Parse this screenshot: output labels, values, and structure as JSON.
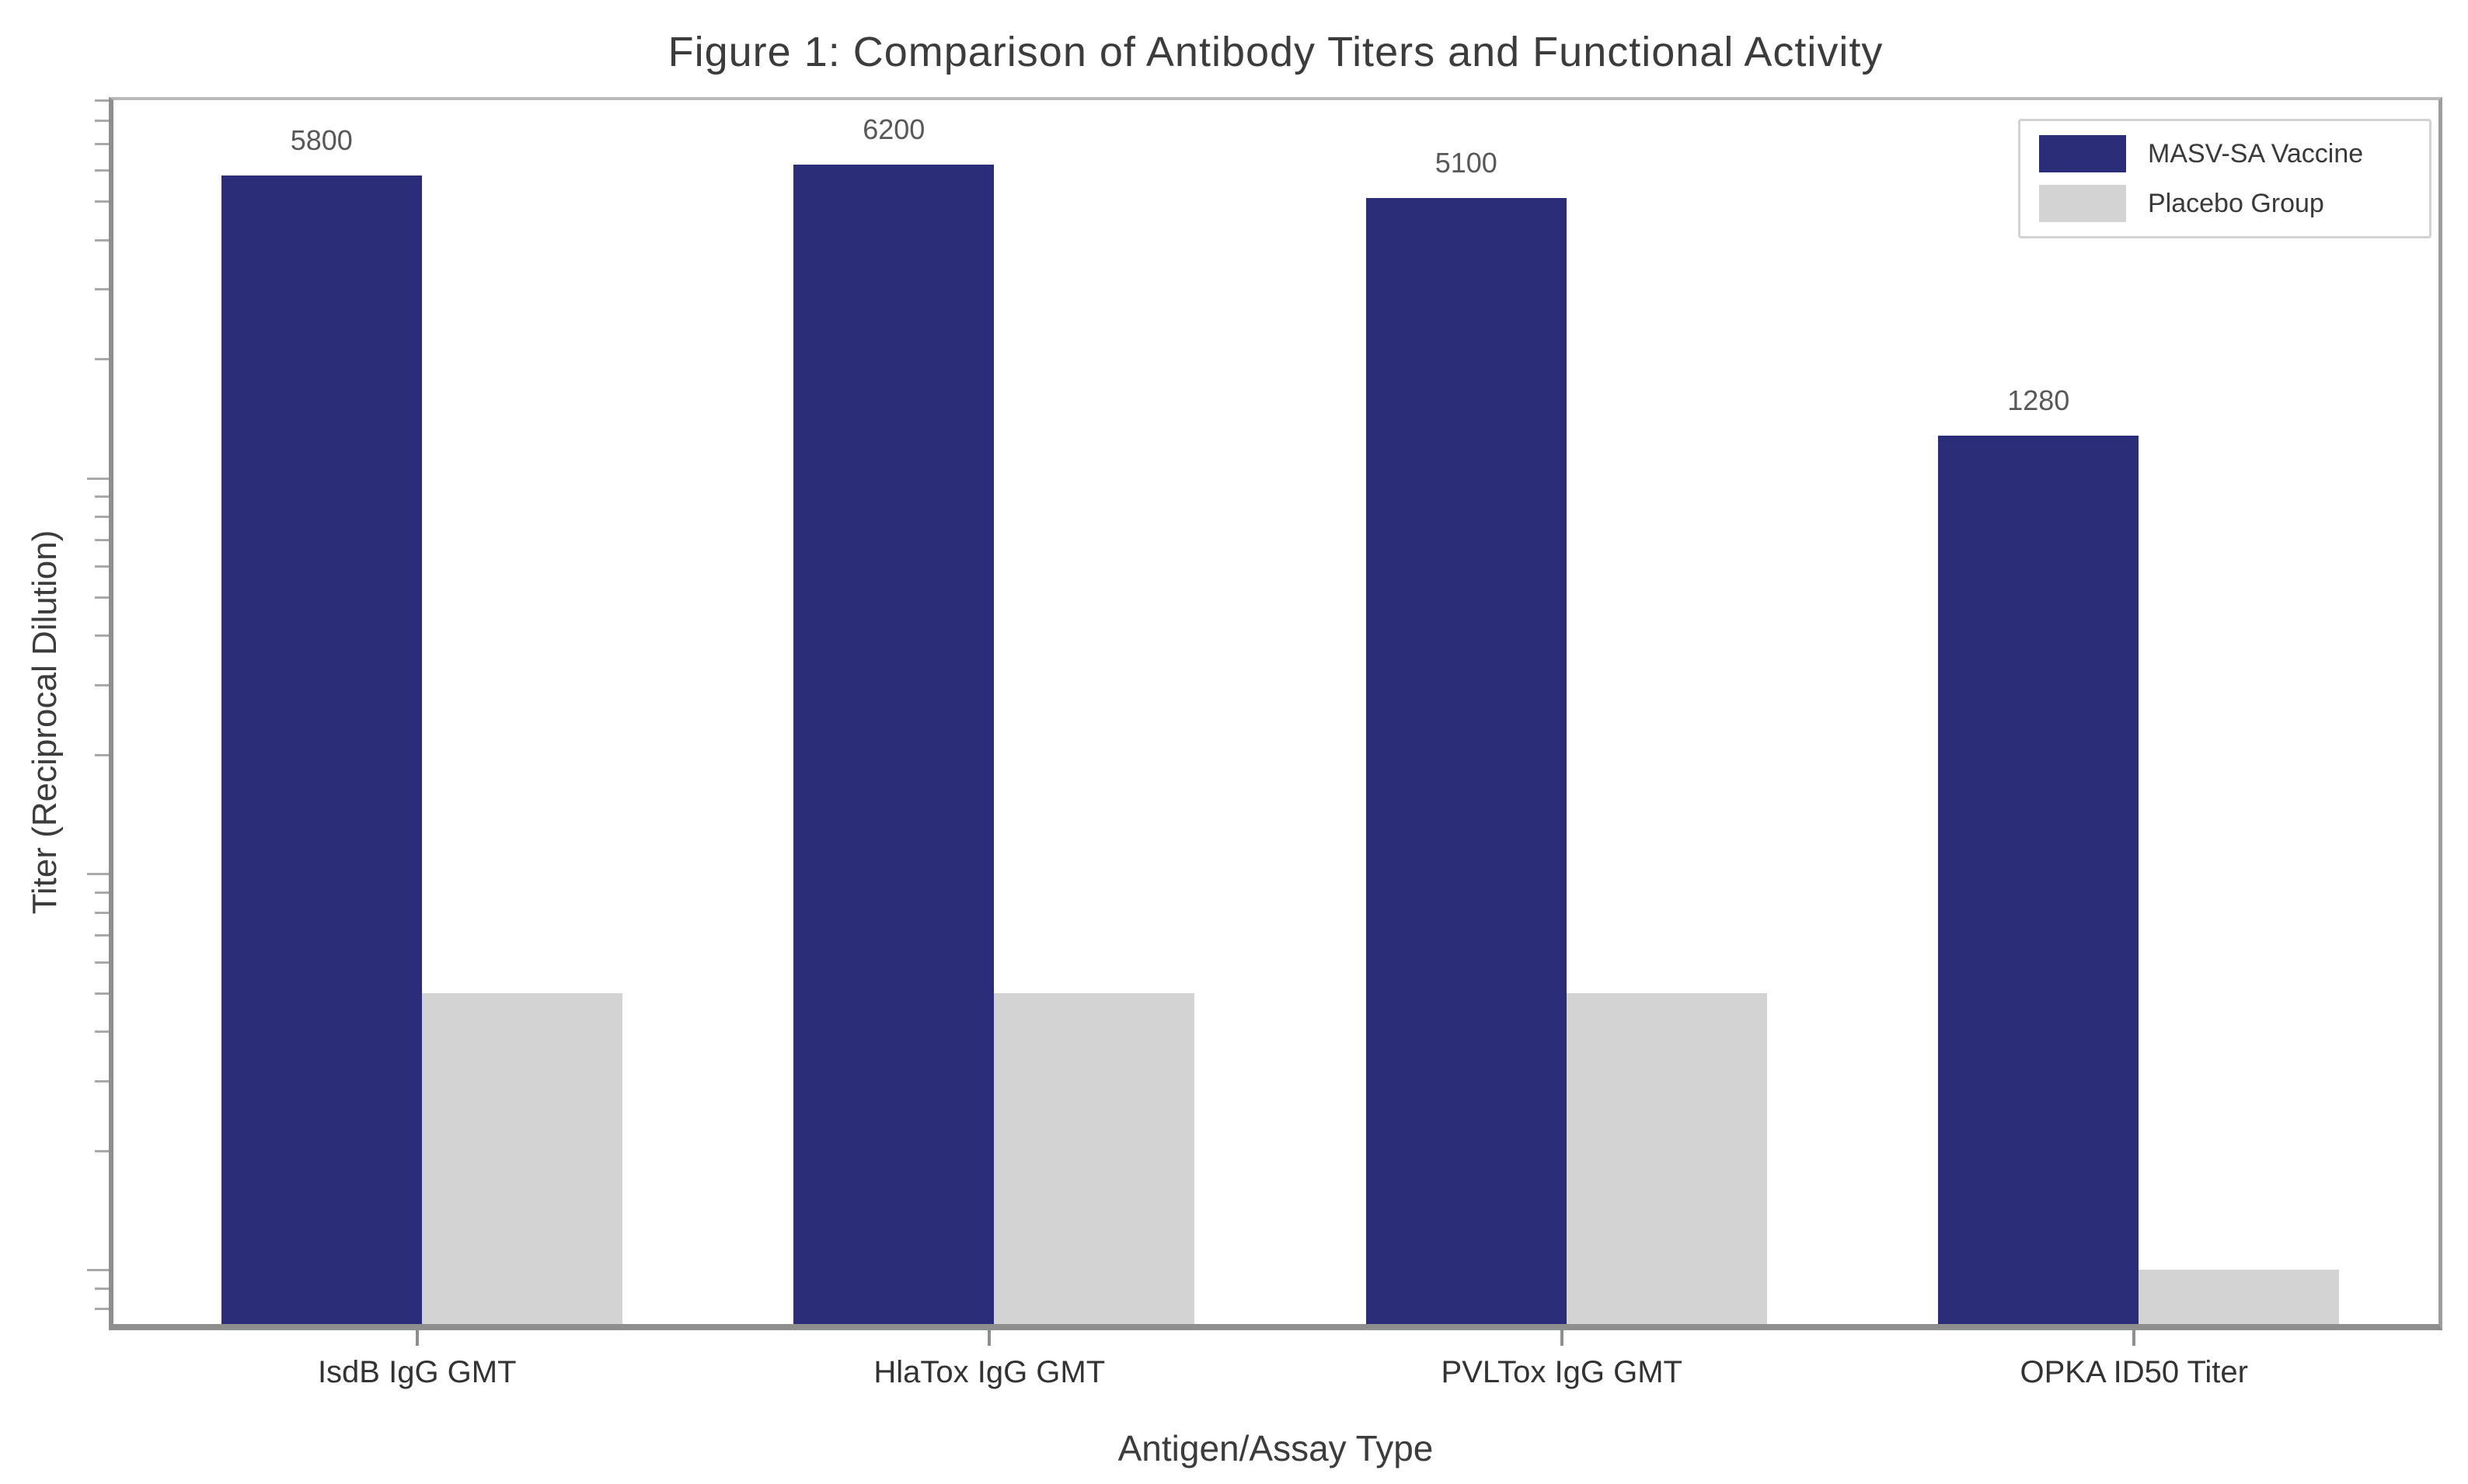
{
  "chart_data": {
    "type": "bar",
    "title": "Figure 1: Comparison of Antibody Titers and Functional Activity",
    "xlabel": "Antigen/Assay Type",
    "ylabel": "Titer (Reciprocal Dilution)",
    "categories": [
      "IsdB IgG GMT",
      "HlaTox IgG GMT",
      "PVLTox IgG GMT",
      "OPKA ID50 Titer"
    ],
    "series": [
      {
        "name": "MASV-SA Vaccine",
        "color": "#2a2d78",
        "values": [
          5800,
          6200,
          5100,
          1280
        ],
        "value_labels": [
          "5800",
          "6200",
          "5100",
          "1280"
        ]
      },
      {
        "name": "Placebo Group",
        "color": "#d3d3d3",
        "values": [
          50,
          50,
          50,
          10
        ],
        "value_labels": [
          "",
          "",
          "",
          ""
        ]
      }
    ],
    "y_scale": "log",
    "ylim": [
      7.3,
      9000
    ],
    "y_tick_labels_visible": false,
    "grid": false,
    "legend_position": "upper right"
  }
}
